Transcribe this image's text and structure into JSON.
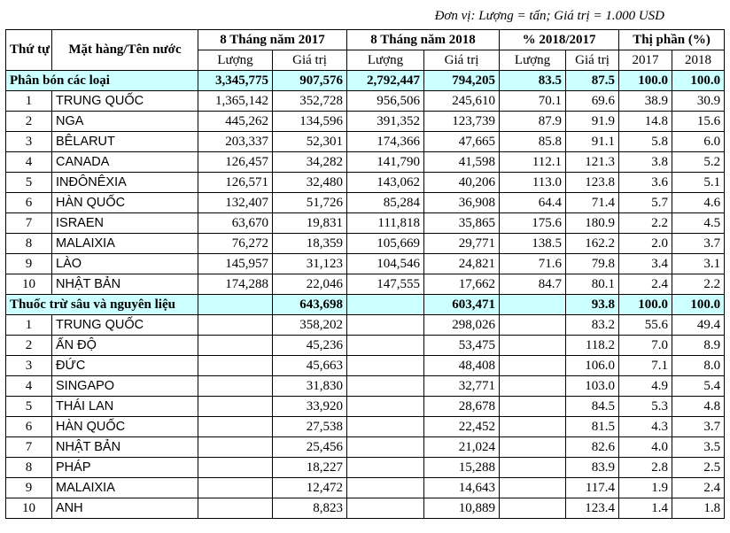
{
  "unit_note": "Đơn vị: Lượng = tấn; Giá trị = 1.000 USD",
  "headers": {
    "stt": "Thứ tự",
    "item": "Mặt hàng/Tên nước",
    "period2017": "8 Tháng năm 2017",
    "period2018": "8 Tháng năm 2018",
    "pct": "% 2018/2017",
    "share": "Thị phần (%)",
    "qty": "Lượng",
    "val": "Giá trị",
    "y2017": "2017",
    "y2018": "2018"
  },
  "groups": [
    {
      "name": "Phân bón các loại",
      "q2017": "3,345,775",
      "v2017": "907,576",
      "q2018": "2,792,447",
      "v2018": "794,205",
      "pq": "83.5",
      "pv": "87.5",
      "s2017": "100.0",
      "s2018": "100.0",
      "rows": [
        {
          "no": "1",
          "name": "TRUNG QUỐC",
          "q2017": "1,365,142",
          "v2017": "352,728",
          "q2018": "956,506",
          "v2018": "245,610",
          "pq": "70.1",
          "pv": "69.6",
          "s2017": "38.9",
          "s2018": "30.9"
        },
        {
          "no": "2",
          "name": "NGA",
          "q2017": "445,262",
          "v2017": "134,596",
          "q2018": "391,352",
          "v2018": "123,739",
          "pq": "87.9",
          "pv": "91.9",
          "s2017": "14.8",
          "s2018": "15.6"
        },
        {
          "no": "3",
          "name": "BÊLARUT",
          "q2017": "203,337",
          "v2017": "52,301",
          "q2018": "174,366",
          "v2018": "47,665",
          "pq": "85.8",
          "pv": "91.1",
          "s2017": "5.8",
          "s2018": "6.0"
        },
        {
          "no": "4",
          "name": "CANADA",
          "q2017": "126,457",
          "v2017": "34,282",
          "q2018": "141,790",
          "v2018": "41,598",
          "pq": "112.1",
          "pv": "121.3",
          "s2017": "3.8",
          "s2018": "5.2"
        },
        {
          "no": "5",
          "name": "INĐÔNÊXIA",
          "q2017": "126,571",
          "v2017": "32,480",
          "q2018": "143,062",
          "v2018": "40,206",
          "pq": "113.0",
          "pv": "123.8",
          "s2017": "3.6",
          "s2018": "5.1"
        },
        {
          "no": "6",
          "name": "HÀN QUỐC",
          "q2017": "132,407",
          "v2017": "51,726",
          "q2018": "85,284",
          "v2018": "36,908",
          "pq": "64.4",
          "pv": "71.4",
          "s2017": "5.7",
          "s2018": "4.6"
        },
        {
          "no": "7",
          "name": "ISRAEN",
          "q2017": "63,670",
          "v2017": "19,831",
          "q2018": "111,818",
          "v2018": "35,865",
          "pq": "175.6",
          "pv": "180.9",
          "s2017": "2.2",
          "s2018": "4.5"
        },
        {
          "no": "8",
          "name": "MALAIXIA",
          "q2017": "76,272",
          "v2017": "18,359",
          "q2018": "105,669",
          "v2018": "29,771",
          "pq": "138.5",
          "pv": "162.2",
          "s2017": "2.0",
          "s2018": "3.7"
        },
        {
          "no": "9",
          "name": "LÀO",
          "q2017": "145,957",
          "v2017": "31,123",
          "q2018": "104,546",
          "v2018": "24,821",
          "pq": "71.6",
          "pv": "79.8",
          "s2017": "3.4",
          "s2018": "3.1"
        },
        {
          "no": "10",
          "name": "NHẬT BẢN",
          "q2017": "174,288",
          "v2017": "22,046",
          "q2018": "147,555",
          "v2018": "17,662",
          "pq": "84.7",
          "pv": "80.1",
          "s2017": "2.4",
          "s2018": "2.2"
        }
      ]
    },
    {
      "name": "Thuốc trừ sâu và nguyên liệu",
      "q2017": "",
      "v2017": "643,698",
      "q2018": "",
      "v2018": "603,471",
      "pq": "",
      "pv": "93.8",
      "s2017": "100.0",
      "s2018": "100.0",
      "rows": [
        {
          "no": "1",
          "name": "TRUNG QUỐC",
          "q2017": "",
          "v2017": "358,202",
          "q2018": "",
          "v2018": "298,026",
          "pq": "",
          "pv": "83.2",
          "s2017": "55.6",
          "s2018": "49.4"
        },
        {
          "no": "2",
          "name": "ẤN ĐỘ",
          "q2017": "",
          "v2017": "45,236",
          "q2018": "",
          "v2018": "53,475",
          "pq": "",
          "pv": "118.2",
          "s2017": "7.0",
          "s2018": "8.9"
        },
        {
          "no": "3",
          "name": "ĐỨC",
          "q2017": "",
          "v2017": "45,663",
          "q2018": "",
          "v2018": "48,408",
          "pq": "",
          "pv": "106.0",
          "s2017": "7.1",
          "s2018": "8.0"
        },
        {
          "no": "4",
          "name": "SINGAPO",
          "q2017": "",
          "v2017": "31,830",
          "q2018": "",
          "v2018": "32,771",
          "pq": "",
          "pv": "103.0",
          "s2017": "4.9",
          "s2018": "5.4"
        },
        {
          "no": "5",
          "name": "THÁI LAN",
          "q2017": "",
          "v2017": "33,920",
          "q2018": "",
          "v2018": "28,678",
          "pq": "",
          "pv": "84.5",
          "s2017": "5.3",
          "s2018": "4.8"
        },
        {
          "no": "6",
          "name": "HÀN QUỐC",
          "q2017": "",
          "v2017": "27,538",
          "q2018": "",
          "v2018": "22,452",
          "pq": "",
          "pv": "81.5",
          "s2017": "4.3",
          "s2018": "3.7"
        },
        {
          "no": "7",
          "name": "NHẬT BẢN",
          "q2017": "",
          "v2017": "25,456",
          "q2018": "",
          "v2018": "21,024",
          "pq": "",
          "pv": "82.6",
          "s2017": "4.0",
          "s2018": "3.5"
        },
        {
          "no": "8",
          "name": "PHÁP",
          "q2017": "",
          "v2017": "18,227",
          "q2018": "",
          "v2018": "15,288",
          "pq": "",
          "pv": "83.9",
          "s2017": "2.8",
          "s2018": "2.5"
        },
        {
          "no": "9",
          "name": "MALAIXIA",
          "q2017": "",
          "v2017": "12,472",
          "q2018": "",
          "v2018": "14,643",
          "pq": "",
          "pv": "117.4",
          "s2017": "1.9",
          "s2018": "2.4"
        },
        {
          "no": "10",
          "name": "ANH",
          "q2017": "",
          "v2017": "8,823",
          "q2018": "",
          "v2018": "10,889",
          "pq": "",
          "pv": "123.4",
          "s2017": "1.4",
          "s2018": "1.8"
        }
      ]
    }
  ],
  "colors": {
    "group_row_bg": "#ccffff",
    "border": "#000000"
  }
}
